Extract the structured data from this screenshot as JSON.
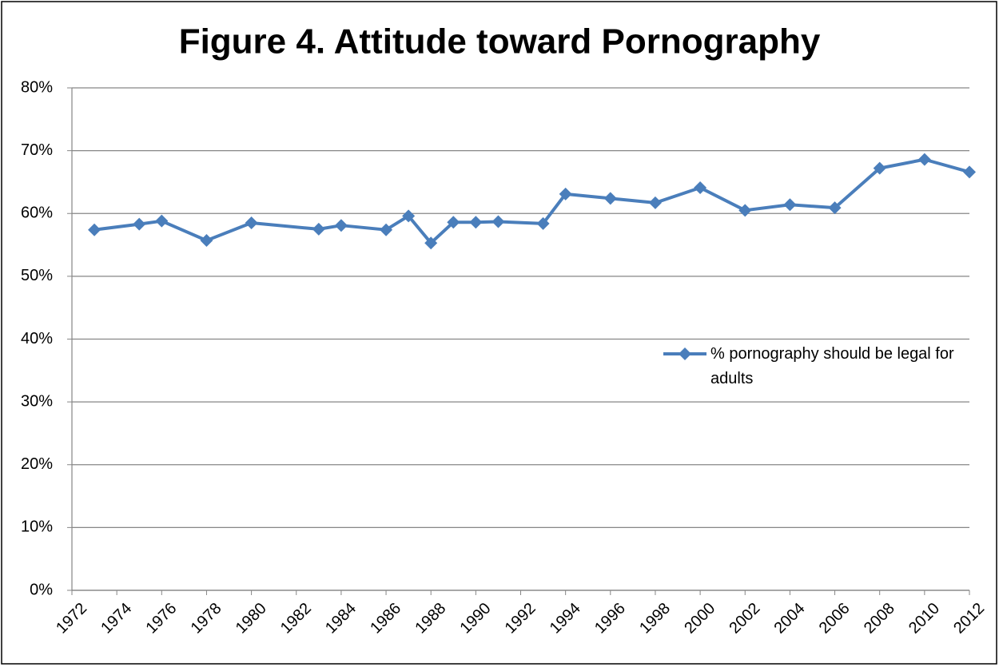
{
  "chart_data": {
    "type": "line",
    "title": "Figure 4. Attitude toward Pornography",
    "x": [
      1973,
      1975,
      1976,
      1978,
      1980,
      1983,
      1984,
      1986,
      1987,
      1988,
      1989,
      1990,
      1991,
      1993,
      1994,
      1996,
      1998,
      2000,
      2002,
      2004,
      2006,
      2008,
      2010,
      2012
    ],
    "series": [
      {
        "name": "% pornography should be legal for adults",
        "color": "#4a7ebb",
        "values": [
          57.4,
          58.3,
          58.8,
          55.7,
          58.5,
          57.5,
          58.1,
          57.4,
          59.6,
          55.3,
          58.6,
          58.6,
          58.7,
          58.4,
          63.1,
          62.4,
          61.7,
          64.1,
          60.5,
          61.4,
          60.9,
          67.2,
          68.6,
          66.6
        ]
      }
    ],
    "xlim": [
      1972,
      2012
    ],
    "xticks": [
      1972,
      1974,
      1976,
      1978,
      1980,
      1982,
      1984,
      1986,
      1988,
      1990,
      1992,
      1994,
      1996,
      1998,
      2000,
      2002,
      2004,
      2006,
      2008,
      2010,
      2012
    ],
    "ylim": [
      0,
      80
    ],
    "yticks": [
      {
        "value": 0,
        "label": "0%"
      },
      {
        "value": 10,
        "label": "10%"
      },
      {
        "value": 20,
        "label": "20%"
      },
      {
        "value": 30,
        "label": "30%"
      },
      {
        "value": 40,
        "label": "40%"
      },
      {
        "value": 50,
        "label": "50%"
      },
      {
        "value": 60,
        "label": "60%"
      },
      {
        "value": 70,
        "label": "70%"
      },
      {
        "value": 80,
        "label": "80%"
      }
    ],
    "grid": true,
    "legend": "right"
  }
}
